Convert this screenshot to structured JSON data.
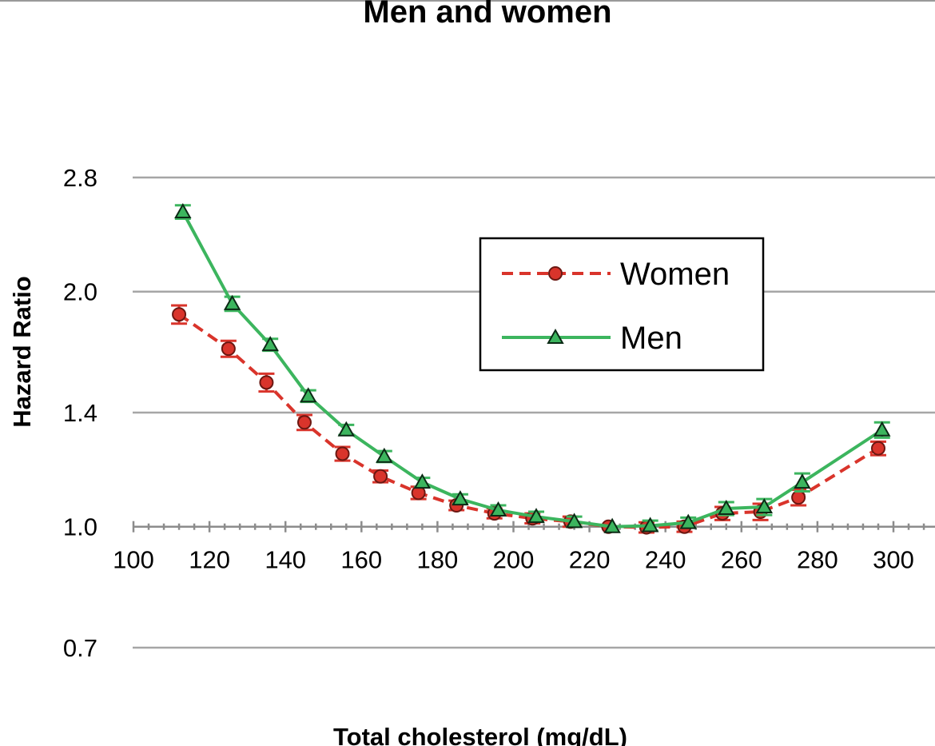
{
  "chart_data": {
    "type": "line",
    "title": "Men and women",
    "xlabel": "Total cholesterol (mg/dL)",
    "ylabel": "Hazard Ratio",
    "y_scale": "log",
    "ylim": [
      0.7,
      2.8
    ],
    "xlim": [
      100,
      310
    ],
    "x_ticks": [
      100,
      120,
      140,
      160,
      180,
      200,
      220,
      240,
      260,
      280,
      300
    ],
    "y_ticks": [
      0.7,
      1.0,
      1.4,
      2.0,
      2.8
    ],
    "x_tick_labels": [
      "100",
      "120",
      "140",
      "160",
      "180",
      "200",
      "220",
      "240",
      "260",
      "280",
      "300"
    ],
    "y_tick_labels": [
      "0.7",
      "1.0",
      "1.4",
      "2.0",
      "2.8"
    ],
    "grid": true,
    "legend_position": "top-right",
    "series": [
      {
        "name": "Women",
        "color": "#d9342b",
        "marker": "circle",
        "line_style": "dashed",
        "points": [
          {
            "x": 112,
            "y": 1.87,
            "err": 0.05
          },
          {
            "x": 125,
            "y": 1.69,
            "err": 0.04
          },
          {
            "x": 135,
            "y": 1.53,
            "err": 0.04
          },
          {
            "x": 145,
            "y": 1.36,
            "err": 0.03
          },
          {
            "x": 155,
            "y": 1.24,
            "err": 0.025
          },
          {
            "x": 165,
            "y": 1.16,
            "err": 0.02
          },
          {
            "x": 175,
            "y": 1.105,
            "err": 0.02
          },
          {
            "x": 185,
            "y": 1.065,
            "err": 0.015
          },
          {
            "x": 195,
            "y": 1.04,
            "err": 0.015
          },
          {
            "x": 205,
            "y": 1.025,
            "err": 0.015
          },
          {
            "x": 215,
            "y": 1.015,
            "err": 0.015
          },
          {
            "x": 225,
            "y": 1.0,
            "err": 0
          },
          {
            "x": 235,
            "y": 0.998,
            "err": 0.015
          },
          {
            "x": 245,
            "y": 1.0,
            "err": 0.015
          },
          {
            "x": 255,
            "y": 1.04,
            "err": 0.02
          },
          {
            "x": 265,
            "y": 1.045,
            "err": 0.025
          },
          {
            "x": 275,
            "y": 1.09,
            "err": 0.025
          },
          {
            "x": 296,
            "y": 1.26,
            "err": 0.025
          }
        ]
      },
      {
        "name": "Men",
        "color": "#3cb55e",
        "marker": "triangle",
        "line_style": "solid",
        "points": [
          {
            "x": 113,
            "y": 2.53,
            "err": 0.05
          },
          {
            "x": 126,
            "y": 1.93,
            "err": 0.04
          },
          {
            "x": 136,
            "y": 1.71,
            "err": 0.03
          },
          {
            "x": 146,
            "y": 1.47,
            "err": 0.025
          },
          {
            "x": 156,
            "y": 1.33,
            "err": 0.02
          },
          {
            "x": 166,
            "y": 1.23,
            "err": 0.02
          },
          {
            "x": 176,
            "y": 1.14,
            "err": 0.015
          },
          {
            "x": 186,
            "y": 1.085,
            "err": 0.015
          },
          {
            "x": 196,
            "y": 1.05,
            "err": 0.015
          },
          {
            "x": 206,
            "y": 1.03,
            "err": 0.015
          },
          {
            "x": 216,
            "y": 1.015,
            "err": 0.015
          },
          {
            "x": 226,
            "y": 1.0,
            "err": 0
          },
          {
            "x": 236,
            "y": 1.003,
            "err": 0.015
          },
          {
            "x": 246,
            "y": 1.012,
            "err": 0.015
          },
          {
            "x": 256,
            "y": 1.055,
            "err": 0.02
          },
          {
            "x": 266,
            "y": 1.06,
            "err": 0.025
          },
          {
            "x": 276,
            "y": 1.14,
            "err": 0.03
          },
          {
            "x": 297,
            "y": 1.33,
            "err": 0.03
          }
        ]
      }
    ]
  },
  "legend": {
    "women_label": "Women",
    "men_label": "Men"
  }
}
